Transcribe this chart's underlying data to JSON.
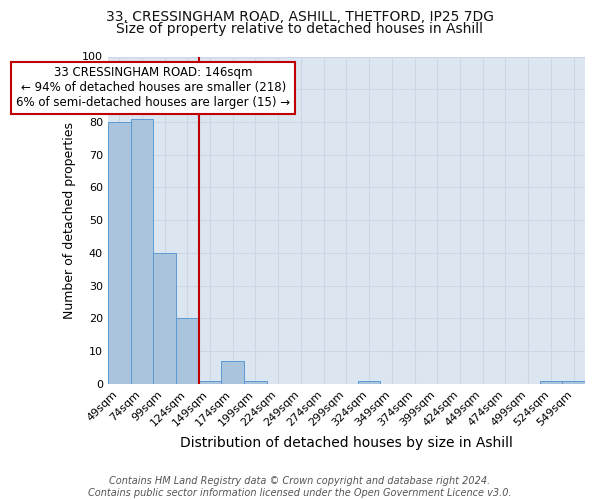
{
  "title1": "33, CRESSINGHAM ROAD, ASHILL, THETFORD, IP25 7DG",
  "title2": "Size of property relative to detached houses in Ashill",
  "xlabel": "Distribution of detached houses by size in Ashill",
  "ylabel": "Number of detached properties",
  "categories": [
    "49sqm",
    "74sqm",
    "99sqm",
    "124sqm",
    "149sqm",
    "174sqm",
    "199sqm",
    "224sqm",
    "249sqm",
    "274sqm",
    "299sqm",
    "324sqm",
    "349sqm",
    "374sqm",
    "399sqm",
    "424sqm",
    "449sqm",
    "474sqm",
    "499sqm",
    "524sqm",
    "549sqm"
  ],
  "values": [
    80,
    81,
    40,
    20,
    1,
    7,
    1,
    0,
    0,
    0,
    0,
    1,
    0,
    0,
    0,
    0,
    0,
    0,
    0,
    1,
    1
  ],
  "bar_color": "#aac4de",
  "bar_edge_color": "#5b9bd5",
  "vline_color": "#c00000",
  "vline_x": 3.5,
  "annotation_text": "33 CRESSINGHAM ROAD: 146sqm\n← 94% of detached houses are smaller (218)\n6% of semi-detached houses are larger (15) →",
  "annotation_box_color": "#ffffff",
  "annotation_box_edge": "#c00000",
  "ylim": [
    0,
    100
  ],
  "yticks": [
    0,
    10,
    20,
    30,
    40,
    50,
    60,
    70,
    80,
    90,
    100
  ],
  "grid_color": "#cdd6e8",
  "background_color": "#dce6f0",
  "footnote": "Contains HM Land Registry data © Crown copyright and database right 2024.\nContains public sector information licensed under the Open Government Licence v3.0.",
  "title1_fontsize": 10,
  "title2_fontsize": 10,
  "xlabel_fontsize": 10,
  "ylabel_fontsize": 9,
  "tick_fontsize": 8,
  "annotation_fontsize": 8.5,
  "footnote_fontsize": 7
}
